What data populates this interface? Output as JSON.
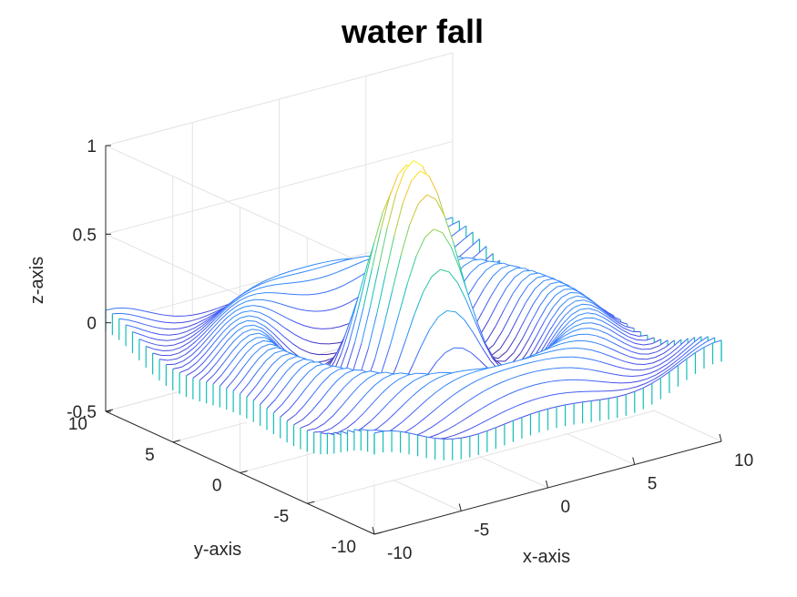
{
  "chart_data": {
    "type": "waterfall",
    "title": "water fall",
    "xlabel": "x-axis",
    "ylabel": "y-axis",
    "zlabel": "z-axis",
    "function": "sin(r)/r, r = sqrt(x^2 + y^2)",
    "xlim": [
      -10,
      10
    ],
    "ylim": [
      -10,
      10
    ],
    "zlim": [
      -0.5,
      1
    ],
    "grid_step": 0.5,
    "xticks": [
      "-10",
      "-5",
      "0",
      "5",
      "10"
    ],
    "yticks": [
      "-10",
      "-5",
      "0",
      "5",
      "10"
    ],
    "zticks": [
      "-0.5",
      "0",
      "0.5",
      "1"
    ],
    "colormap": "parula",
    "grid": true
  }
}
